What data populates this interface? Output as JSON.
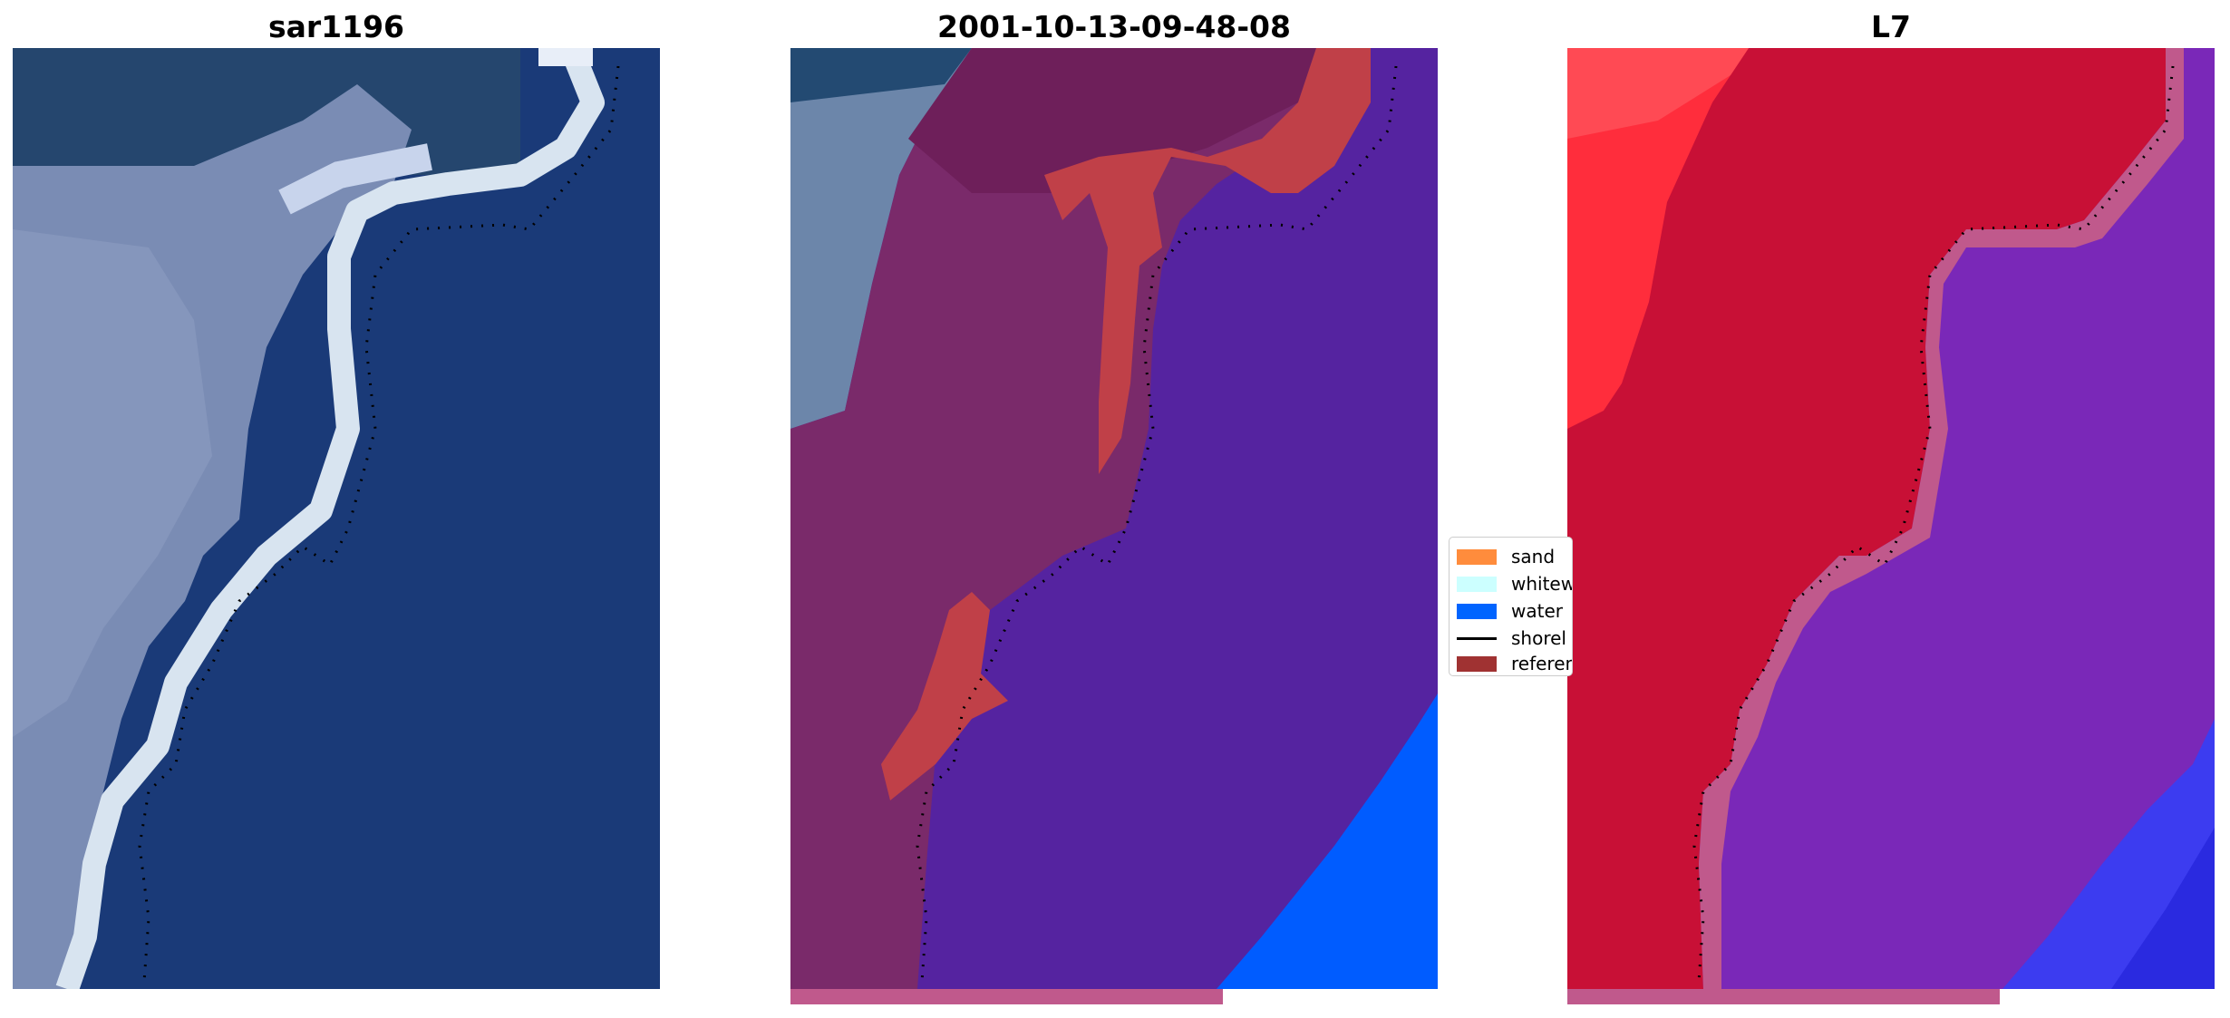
{
  "panels": [
    {
      "title": "sar1196",
      "shoreline_icon": "dotted-shoreline"
    },
    {
      "title": "2001-10-13-09-48-08",
      "shoreline_icon": "dotted-shoreline"
    },
    {
      "title": "L7",
      "shoreline_icon": "dotted-shoreline"
    }
  ],
  "legend": {
    "items": [
      {
        "label": "sand",
        "color": "#ff8c3c",
        "icon": "swatch"
      },
      {
        "label": "whitew",
        "color": "#ccffff",
        "icon": "swatch"
      },
      {
        "label": "water",
        "color": "#0064ff",
        "icon": "swatch"
      },
      {
        "label": "shorel",
        "color": "#000000",
        "icon": "line"
      },
      {
        "label": "referen",
        "color": "#a03232",
        "icon": "swatch"
      }
    ]
  },
  "colors": {
    "rgb_water": "#1a3a78",
    "rgb_surf": "#a8b8d8",
    "class_water": "#5523a0",
    "class_surf_overlay": "#7a2a6a",
    "class_reference": "#c04048",
    "class_open_water": "#005cff",
    "index_land": "#c81036",
    "index_water": "#7a28b8",
    "index_open_water": "#3c3cf0",
    "strip": "#c0598c"
  }
}
